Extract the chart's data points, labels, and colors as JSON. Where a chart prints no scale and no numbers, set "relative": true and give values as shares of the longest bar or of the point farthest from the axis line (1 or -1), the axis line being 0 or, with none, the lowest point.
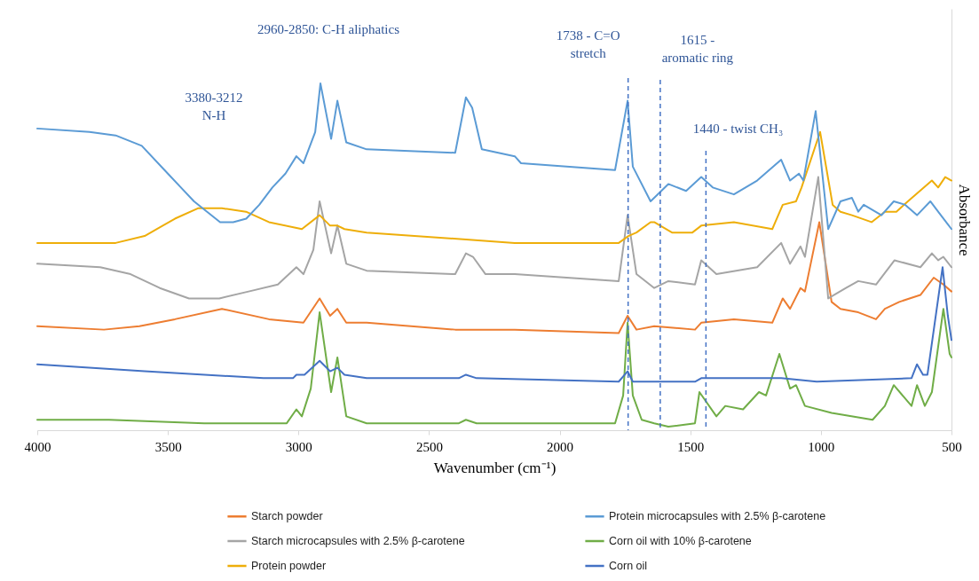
{
  "chart_data": {
    "type": "line",
    "relative": true,
    "xlabel": "Wavenumber  (cm⁻¹)",
    "ylabel": "Absorbance",
    "xlim": [
      4000,
      500
    ],
    "xticks": [
      4000,
      3500,
      3000,
      2500,
      2000,
      1500,
      1000,
      500
    ],
    "tick_labels": "x",
    "legend": "bottom",
    "line_style": "solid",
    "series": [
      {
        "name": "Starch powder",
        "color": "#ed7d31",
        "x": [
          4000,
          3745,
          3609,
          3473,
          3293,
          3113,
          2981,
          2919,
          2879,
          2851,
          2817,
          2739,
          2400,
          2359,
          2172,
          1774,
          1740,
          1706,
          1638,
          1482,
          1458,
          1333,
          1186,
          1146,
          1118,
          1078,
          1061,
          1006,
          959,
          925,
          857,
          789,
          755,
          700,
          619,
          568,
          531,
          500
        ],
        "values": [
          0.3,
          0.29,
          0.3,
          0.32,
          0.35,
          0.32,
          0.31,
          0.38,
          0.33,
          0.35,
          0.31,
          0.31,
          0.29,
          0.29,
          0.29,
          0.28,
          0.33,
          0.29,
          0.3,
          0.29,
          0.31,
          0.32,
          0.31,
          0.38,
          0.35,
          0.41,
          0.4,
          0.6,
          0.37,
          0.35,
          0.34,
          0.32,
          0.35,
          0.37,
          0.39,
          0.44,
          0.42,
          0.4
        ]
      },
      {
        "name": "Starch microcapsules with 2.5% β-carotene",
        "color": "#a5a5a5",
        "x": [
          4000,
          3759,
          3643,
          3531,
          3419,
          3303,
          3191,
          3079,
          3008,
          2981,
          2943,
          2919,
          2875,
          2851,
          2817,
          2739,
          2400,
          2359,
          2332,
          2284,
          2172,
          1774,
          1740,
          1706,
          1638,
          1584,
          1482,
          1458,
          1400,
          1244,
          1152,
          1118,
          1078,
          1061,
          1010,
          972,
          904,
          857,
          789,
          718,
          619,
          575,
          551,
          531,
          500
        ],
        "values": [
          0.48,
          0.47,
          0.45,
          0.41,
          0.38,
          0.38,
          0.4,
          0.42,
          0.47,
          0.45,
          0.52,
          0.66,
          0.51,
          0.59,
          0.48,
          0.46,
          0.45,
          0.51,
          0.5,
          0.45,
          0.45,
          0.43,
          0.62,
          0.45,
          0.41,
          0.43,
          0.42,
          0.49,
          0.45,
          0.47,
          0.54,
          0.48,
          0.53,
          0.5,
          0.73,
          0.38,
          0.41,
          0.43,
          0.42,
          0.49,
          0.47,
          0.51,
          0.49,
          0.5,
          0.47
        ]
      },
      {
        "name": "Protein powder",
        "color": "#eeae0a",
        "x": [
          4000,
          3700,
          3589,
          3473,
          3385,
          3293,
          3201,
          3113,
          2987,
          2919,
          2879,
          2851,
          2824,
          2739,
          2172,
          1774,
          1737,
          1706,
          1652,
          1638,
          1570,
          1492,
          1458,
          1333,
          1186,
          1146,
          1095,
          1074,
          1003,
          955,
          925,
          881,
          806,
          755,
          711,
          667,
          575,
          551,
          524,
          500
        ],
        "values": [
          0.54,
          0.54,
          0.56,
          0.61,
          0.64,
          0.64,
          0.63,
          0.6,
          0.58,
          0.62,
          0.59,
          0.59,
          0.58,
          0.57,
          0.54,
          0.54,
          0.56,
          0.57,
          0.6,
          0.6,
          0.57,
          0.57,
          0.59,
          0.6,
          0.58,
          0.65,
          0.66,
          0.7,
          0.86,
          0.65,
          0.63,
          0.62,
          0.6,
          0.63,
          0.63,
          0.66,
          0.72,
          0.7,
          0.73,
          0.72
        ]
      },
      {
        "name": "Protein microcapsules with 2.5% β-carotene",
        "color": "#5b9bd5",
        "x": [
          4000,
          3800,
          3700,
          3600,
          3500,
          3450,
          3400,
          3350,
          3300,
          3250,
          3200,
          3150,
          3100,
          3050,
          3008,
          2981,
          2936,
          2916,
          2875,
          2851,
          2817,
          2739,
          2400,
          2359,
          2335,
          2298,
          2172,
          2148,
          1788,
          1740,
          1720,
          1652,
          1584,
          1516,
          1458,
          1414,
          1333,
          1244,
          1152,
          1118,
          1084,
          1067,
          1020,
          972,
          925,
          881,
          857,
          836,
          768,
          721,
          677,
          632,
          581,
          551,
          500
        ],
        "values": [
          0.87,
          0.86,
          0.85,
          0.82,
          0.74,
          0.7,
          0.66,
          0.63,
          0.6,
          0.6,
          0.61,
          0.65,
          0.7,
          0.74,
          0.79,
          0.77,
          0.86,
          1.0,
          0.84,
          0.95,
          0.83,
          0.81,
          0.8,
          0.96,
          0.93,
          0.81,
          0.79,
          0.77,
          0.75,
          0.95,
          0.76,
          0.66,
          0.71,
          0.69,
          0.73,
          0.7,
          0.68,
          0.72,
          0.78,
          0.72,
          0.74,
          0.72,
          0.92,
          0.58,
          0.66,
          0.67,
          0.63,
          0.65,
          0.62,
          0.66,
          0.65,
          0.62,
          0.66,
          0.63,
          0.58
        ]
      },
      {
        "name": "Corn oil with 10% β-carotene",
        "color": "#70ad47",
        "x": [
          4000,
          3725,
          3361,
          3045,
          3008,
          2987,
          2953,
          2919,
          2875,
          2851,
          2817,
          2739,
          2386,
          2359,
          2318,
          1788,
          1757,
          1740,
          1720,
          1686,
          1638,
          1584,
          1482,
          1465,
          1400,
          1366,
          1298,
          1237,
          1210,
          1159,
          1118,
          1095,
          1061,
          959,
          802,
          755,
          721,
          653,
          632,
          602,
          575,
          531,
          507,
          500
        ],
        "values": [
          0.03,
          0.03,
          0.02,
          0.02,
          0.06,
          0.04,
          0.12,
          0.34,
          0.11,
          0.21,
          0.04,
          0.02,
          0.02,
          0.03,
          0.02,
          0.02,
          0.1,
          0.31,
          0.1,
          0.03,
          0.02,
          0.01,
          0.02,
          0.11,
          0.04,
          0.07,
          0.06,
          0.11,
          0.1,
          0.22,
          0.12,
          0.13,
          0.07,
          0.05,
          0.03,
          0.07,
          0.13,
          0.07,
          0.13,
          0.07,
          0.11,
          0.35,
          0.22,
          0.21
        ]
      },
      {
        "name": "Corn oil",
        "color": "#4472c4",
        "x": [
          4000,
          3589,
          3134,
          3021,
          3008,
          2977,
          2919,
          2879,
          2851,
          2824,
          2739,
          2386,
          2359,
          2318,
          1774,
          1740,
          1720,
          1482,
          1458,
          1152,
          1016,
          653,
          632,
          609,
          592,
          534,
          514,
          500
        ],
        "values": [
          0.19,
          0.17,
          0.15,
          0.15,
          0.16,
          0.16,
          0.2,
          0.17,
          0.18,
          0.16,
          0.15,
          0.15,
          0.16,
          0.15,
          0.14,
          0.17,
          0.14,
          0.14,
          0.15,
          0.15,
          0.14,
          0.15,
          0.19,
          0.16,
          0.16,
          0.47,
          0.33,
          0.26
        ]
      }
    ],
    "ref_lines": [
      {
        "axis": "x",
        "value": 1738,
        "label": "1738 - C=O\nstretch",
        "color": "#4472c4",
        "line_style": "dashed"
      },
      {
        "axis": "x",
        "value": 1615,
        "label": "1615 -\naromatic ring",
        "color": "#4472c4",
        "line_style": "dashed"
      },
      {
        "axis": "x",
        "value": 1440,
        "label": "1440 - twist CH₃",
        "color": "#4472c4",
        "line_style": "dashed"
      }
    ],
    "annotations": [
      "3380-3212\nN-H",
      "2960-2850: C-H aliphatics"
    ]
  }
}
